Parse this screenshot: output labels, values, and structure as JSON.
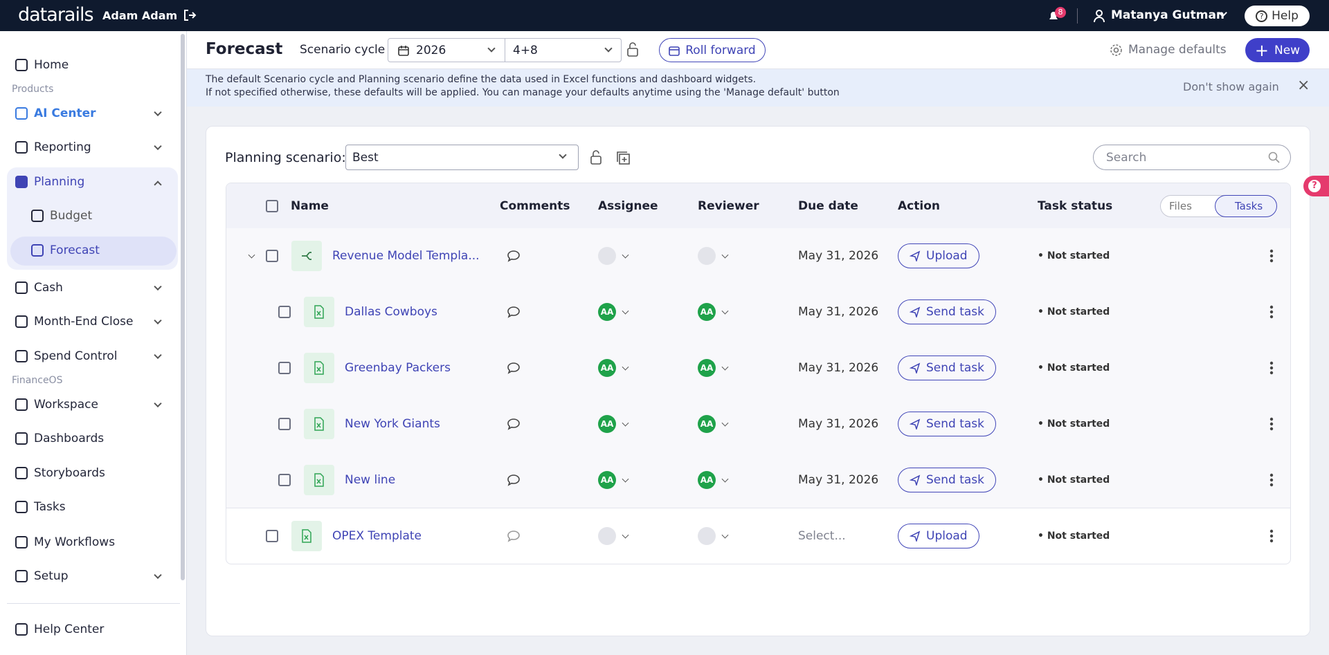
{
  "topbar": {
    "brand": "datarails",
    "workspace": "Adam Adam",
    "notifications": "8",
    "user": "Matanya Gutman",
    "help": "Help"
  },
  "sidebar": {
    "items": [
      {
        "label": "Home"
      },
      {
        "section": "Products"
      },
      {
        "label": "AI Center"
      },
      {
        "label": "Reporting"
      },
      {
        "label": "Planning"
      },
      {
        "label": "Budget"
      },
      {
        "label": "Forecast"
      },
      {
        "label": "Cash"
      },
      {
        "label": "Month-End Close"
      },
      {
        "label": "Spend Control"
      },
      {
        "section": "FinanceOS"
      },
      {
        "label": "Workspace"
      },
      {
        "label": "Dashboards"
      },
      {
        "label": "Storyboards"
      },
      {
        "label": "Tasks"
      },
      {
        "label": "My Workflows"
      },
      {
        "label": "Setup"
      },
      {
        "label": "Help Center"
      }
    ]
  },
  "header": {
    "title": "Forecast",
    "scenario_label": "Scenario cycle",
    "year": "2026",
    "period": "4+8",
    "roll": "Roll forward",
    "manage": "Manage defaults",
    "new": "New"
  },
  "banner": {
    "line1": "The default Scenario cycle and Planning scenario define the data used in Excel functions and dashboard widgets.",
    "line2": "If not specified otherwise, these defaults will be applied. You can manage your defaults anytime using the 'Manage default' button",
    "dismiss": "Don't show again"
  },
  "panel": {
    "scenario_label": "Planning scenario:",
    "scenario": "Best",
    "search": "Search",
    "columns": [
      "Name",
      "Comments",
      "Assignee",
      "Reviewer",
      "Due date",
      "Action",
      "Task status"
    ],
    "toggle": [
      "Files",
      "Tasks"
    ],
    "rows": [
      {
        "name": "Revenue Model Templa...",
        "due": "May 31, 2026",
        "action": "Upload",
        "status": "Not started",
        "children": [
          {
            "name": "Dallas Cowboys",
            "assignee": "AA",
            "reviewer": "AA",
            "due": "May 31, 2026",
            "action": "Send task",
            "status": "Not started"
          },
          {
            "name": "Greenbay Packers",
            "assignee": "AA",
            "reviewer": "AA",
            "due": "May 31, 2026",
            "action": "Send task",
            "status": "Not started"
          },
          {
            "name": "New York Giants",
            "assignee": "AA",
            "reviewer": "AA",
            "due": "May 31, 2026",
            "action": "Send task",
            "status": "Not started"
          },
          {
            "name": "New line",
            "assignee": "AA",
            "reviewer": "AA",
            "due": "May 31, 2026",
            "action": "Send task",
            "status": "Not started"
          }
        ]
      },
      {
        "name": "OPEX Template",
        "due": "Select...",
        "action": "Upload",
        "status": "Not started"
      }
    ]
  }
}
